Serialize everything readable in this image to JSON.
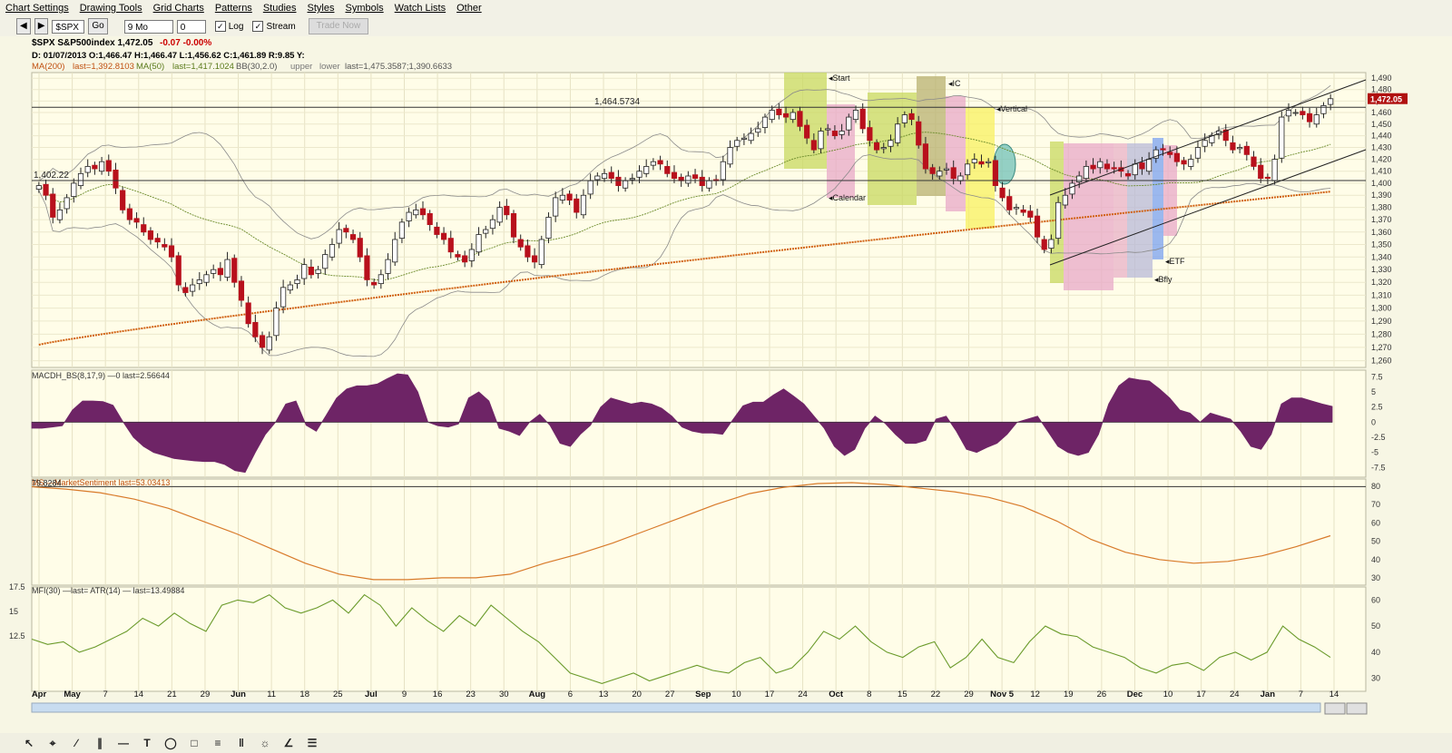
{
  "menu": [
    "Chart Settings",
    "Drawing Tools",
    "Grid Charts",
    "Patterns",
    "Studies",
    "Styles",
    "Symbols",
    "Watch Lists",
    "Other"
  ],
  "toolbar": {
    "symbol": "$SPX",
    "go": "Go",
    "period": "9 Mo",
    "offset": "0",
    "log": "Log",
    "stream": "Stream",
    "trade": "Trade Now"
  },
  "header": {
    "line1": "$SPX S&P500index  1,472.05",
    "change": "-0.07  -0.00%",
    "line2": "D: 01/07/2013 O:1,466.47 H:1,466.47 L:1,456.62 C:1,461.89 R:9.85  Y:",
    "ma200": "MA(200)",
    "ma200_last": "last=1,392.8103",
    "ma50": "MA(50)",
    "ma50_last": "last=1,417.1024",
    "bb": "BB(30,2.0)",
    "bb_upper": "upper",
    "bb_lower": "lower",
    "bb_last": "last=1,475.3587;1,390.6633"
  },
  "colors": {
    "up": "#ffffff",
    "down": "#b8101c",
    "macd": "#6e2466",
    "ms": "#d87a2a",
    "mfi": "#6a9a2a",
    "bb": "#8a8a8a",
    "ma50": "#6a8a2a",
    "ma200": "#d06010",
    "bg": "#fffde8"
  },
  "chart_data": [
    {
      "type": "candlestick",
      "name": "main",
      "title": "$SPX S&P500index",
      "y_scale": "log",
      "ylim": [
        1255,
        1495
      ],
      "y_ticks": [
        1260,
        1270,
        1280,
        1290,
        1300,
        1310,
        1320,
        1330,
        1340,
        1350,
        1360,
        1370,
        1380,
        1390,
        1400,
        1410,
        1420,
        1430,
        1440,
        1450,
        1460,
        1470,
        1480,
        1490
      ],
      "last_price": "1,472.05",
      "ohlc_closes": [
        1398,
        1390,
        1372,
        1378,
        1388,
        1400,
        1408,
        1414,
        1412,
        1418,
        1410,
        1396,
        1378,
        1370,
        1368,
        1360,
        1354,
        1352,
        1348,
        1340,
        1318,
        1312,
        1318,
        1322,
        1326,
        1330,
        1326,
        1338,
        1320,
        1306,
        1288,
        1278,
        1270,
        1278,
        1300,
        1316,
        1318,
        1322,
        1334,
        1326,
        1330,
        1342,
        1350,
        1362,
        1360,
        1354,
        1340,
        1322,
        1318,
        1326,
        1338,
        1354,
        1368,
        1376,
        1378,
        1374,
        1366,
        1358,
        1354,
        1344,
        1340,
        1336,
        1346,
        1358,
        1362,
        1370,
        1380,
        1374,
        1356,
        1348,
        1340,
        1336,
        1354,
        1372,
        1388,
        1390,
        1386,
        1376,
        1390,
        1402,
        1406,
        1408,
        1404,
        1398,
        1402,
        1404,
        1410,
        1414,
        1418,
        1416,
        1408,
        1404,
        1402,
        1406,
        1404,
        1398,
        1402,
        1402,
        1418,
        1430,
        1436,
        1438,
        1442,
        1446,
        1456,
        1462,
        1458,
        1456,
        1460,
        1448,
        1438,
        1428,
        1444,
        1446,
        1440,
        1444,
        1456,
        1462,
        1446,
        1436,
        1428,
        1430,
        1436,
        1450,
        1458,
        1454,
        1432,
        1412,
        1408,
        1410,
        1412,
        1404,
        1406,
        1416,
        1420,
        1416,
        1418,
        1398,
        1388,
        1378,
        1380,
        1376,
        1372,
        1356,
        1346,
        1354,
        1384,
        1390,
        1400,
        1406,
        1414,
        1412,
        1418,
        1412,
        1412,
        1410,
        1406,
        1416,
        1412,
        1420,
        1428,
        1428,
        1424,
        1418,
        1416,
        1420,
        1430,
        1436,
        1440,
        1444,
        1436,
        1428,
        1430,
        1424,
        1414,
        1404,
        1404,
        1420,
        1456,
        1462,
        1460,
        1458,
        1452,
        1458,
        1466,
        1472
      ],
      "x_ticks": [
        "Apr",
        "May",
        "7",
        "14",
        "21",
        "29",
        "Jun",
        "11",
        "18",
        "25",
        "Jul",
        "9",
        "16",
        "23",
        "30",
        "Aug",
        "6",
        "13",
        "20",
        "27",
        "Sep",
        "10",
        "17",
        "24",
        "Oct",
        "8",
        "15",
        "22",
        "29",
        "Nov 5",
        "12",
        "19",
        "26",
        "Dec",
        "10",
        "17",
        "24",
        "Jan",
        "7",
        "14"
      ],
      "horizontal_lines": [
        {
          "value": 1402.22,
          "label": "1,402.22"
        },
        {
          "value": 1464.5734,
          "label": "1,464.5734"
        }
      ],
      "annotations": [
        "Start",
        "IC",
        "Vertical",
        "Calendar",
        "ETF",
        "Bfly"
      ]
    },
    {
      "type": "area",
      "name": "MACDH_BS",
      "title": "MACDH_BS(8,17,9)",
      "legend": "0",
      "last": "last=2.56644",
      "ylim": [
        -8.5,
        8
      ],
      "y_ticks": [
        "7.5",
        "5",
        "2.5",
        "0",
        "-2.5",
        "-5",
        "-7.5"
      ],
      "values": [
        -1,
        -1,
        -0.8,
        -0.6,
        2,
        3.5,
        3.5,
        3.4,
        2.8,
        0,
        -2.5,
        -4,
        -5,
        -5.5,
        -6,
        -6.2,
        -6.4,
        -6.5,
        -6.5,
        -7,
        -8,
        -8.3,
        -5,
        -2,
        0,
        3,
        3.5,
        -0.5,
        -1.5,
        1.2,
        4,
        5.5,
        6,
        6,
        6.3,
        7.2,
        8,
        7.8,
        5,
        0,
        -0.6,
        -0.8,
        -0.3,
        4,
        5,
        3.5,
        -1,
        -1.5,
        -2.2,
        0,
        1.3,
        -0.5,
        -3.5,
        -4,
        -2,
        -0.5,
        2.5,
        4,
        3.5,
        3,
        3.3,
        3,
        2.3,
        1,
        -0.8,
        -1.5,
        -1.8,
        -1.8,
        -2,
        0.4,
        2.7,
        3.3,
        3.3,
        4.5,
        5.5,
        4.3,
        3,
        1,
        -1,
        -4,
        -5.5,
        -4.5,
        -1,
        1,
        -0.2,
        -2,
        -3.5,
        -3.5,
        -3,
        0.5,
        1,
        -1.5,
        -4.5,
        -5,
        -4.2,
        -3.5,
        -2,
        0,
        0.5,
        1,
        -1.5,
        -4,
        -5,
        -5.5,
        -5,
        -2,
        3,
        6,
        7.3,
        7,
        6.8,
        5.5,
        4,
        2,
        1.5,
        0,
        1.5,
        1,
        0.5,
        -1.5,
        -4,
        -4.5,
        -2,
        3,
        4,
        4,
        3.5,
        3,
        2.6
      ]
    },
    {
      "type": "line",
      "name": "MS",
      "title": "MS",
      "legend": "MarketSentiment",
      "last": "last=53.03413",
      "level_label": "79.8284",
      "ylim": [
        26,
        84
      ],
      "y_ticks": [
        "80",
        "70",
        "60",
        "50",
        "40",
        "30"
      ],
      "values": [
        79.8,
        78.5,
        76.5,
        73,
        68,
        61,
        54,
        46,
        38,
        32,
        29,
        29,
        30,
        30,
        32,
        38,
        43,
        49,
        56,
        63,
        70,
        76,
        79.5,
        81.5,
        82,
        81,
        79,
        77,
        74,
        69,
        61,
        51,
        44,
        40,
        38,
        39,
        42,
        47,
        53
      ]
    },
    {
      "type": "line",
      "name": "MFI_ATR",
      "title": "MFI(30)",
      "legend": "last=",
      "legend2": "ATR(14)",
      "last": "last=13.49884",
      "ylim_right": [
        25,
        65
      ],
      "y_ticks_right": [
        "60",
        "50",
        "40",
        "30"
      ],
      "y_ticks_left": [
        "17.5",
        "15",
        "12.5"
      ],
      "values": [
        45,
        43,
        44,
        40,
        42,
        45,
        48,
        53,
        50,
        55,
        51,
        48,
        58,
        60,
        59,
        62,
        57,
        55,
        57,
        60,
        55,
        62,
        58,
        50,
        57,
        52,
        48,
        54,
        50,
        58,
        53,
        48,
        44,
        38,
        32,
        30,
        28,
        30,
        32,
        29,
        31,
        33,
        35,
        33,
        32,
        36,
        38,
        32,
        34,
        40,
        48,
        45,
        50,
        44,
        40,
        38,
        42,
        44,
        34,
        38,
        45,
        38,
        36,
        44,
        50,
        47,
        46,
        42,
        40,
        38,
        34,
        32,
        35,
        36,
        33,
        38,
        40,
        37,
        40,
        50,
        45,
        42,
        38
      ]
    }
  ]
}
